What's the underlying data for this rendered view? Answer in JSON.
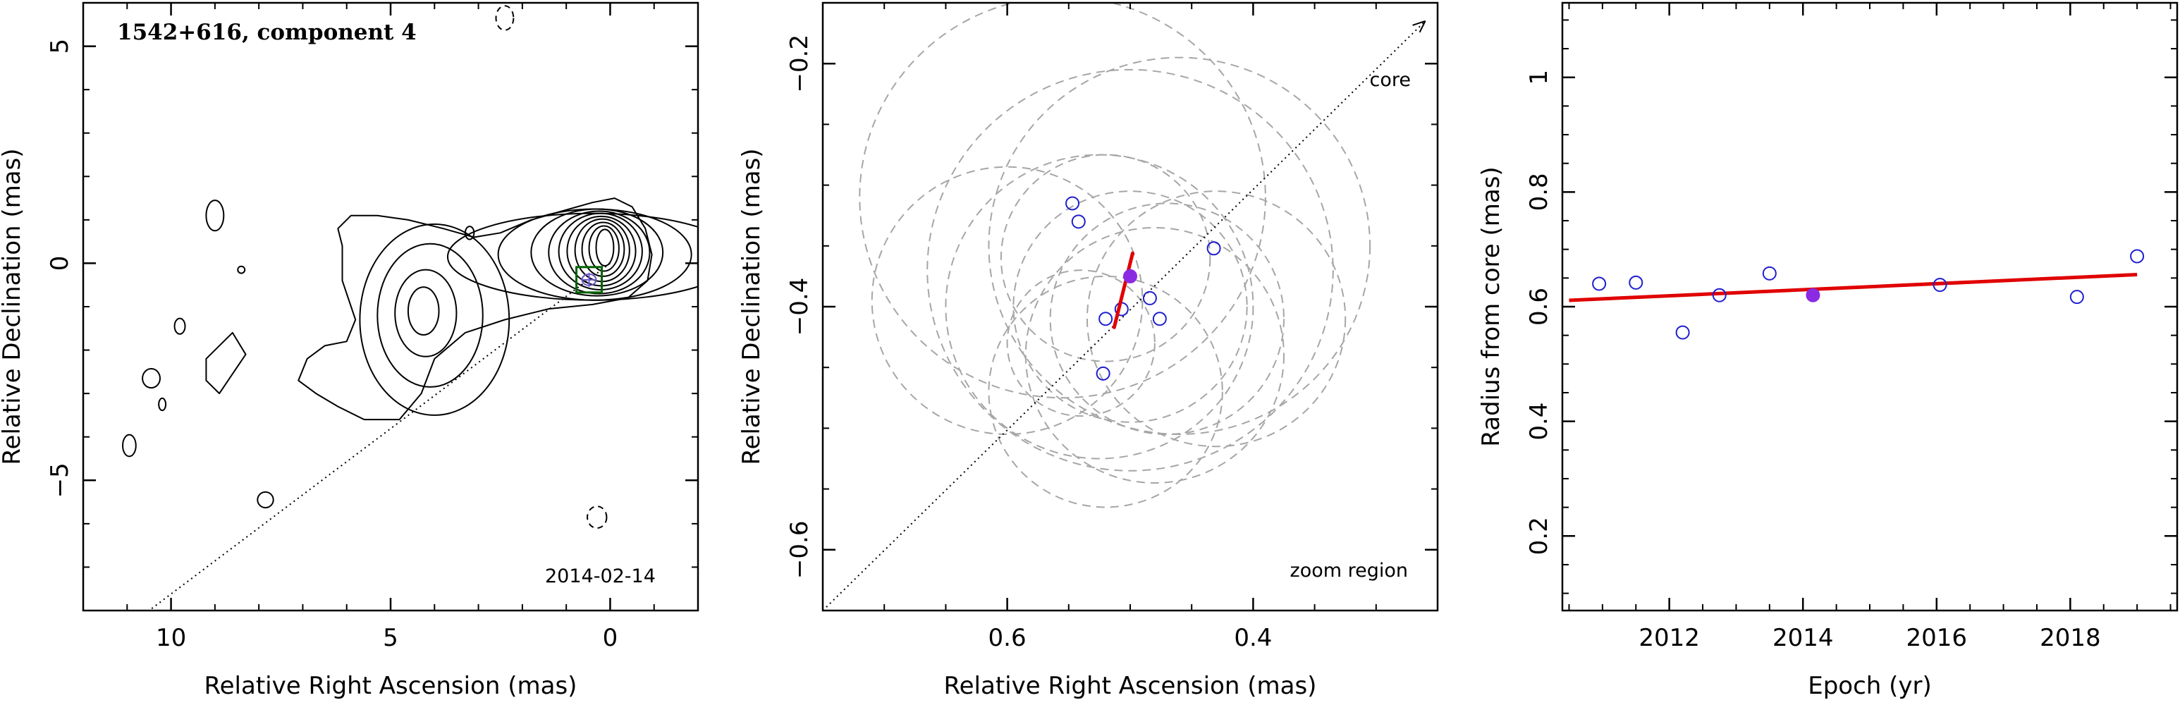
{
  "chart_data": [
    {
      "id": "panel1",
      "type": "contour-map",
      "title": "1542+616, component 4",
      "epoch_label": "2014-02-14",
      "xlabel": "Relative Right Ascension (mas)",
      "ylabel": "Relative Declination (mas)",
      "xlim": [
        12,
        -2
      ],
      "ylim": [
        -8,
        6
      ],
      "x_ticks": [
        10,
        5,
        0
      ],
      "y_ticks": [
        5,
        0,
        -5
      ],
      "core": [
        0,
        0
      ],
      "component": [
        0.48,
        -0.38
      ],
      "jet_direction_line": {
        "from": [
          0,
          0
        ],
        "to": [
          10.5,
          -8
        ]
      },
      "negative_contours": [
        {
          "cx": 2.4,
          "cy": 5.65,
          "rx": 0.2,
          "ry": 0.28
        },
        {
          "cx": 0.3,
          "cy": -5.85,
          "rx": 0.22,
          "ry": 0.25
        }
      ],
      "island_contours": [
        {
          "cx": 10.95,
          "cy": -4.2,
          "rx": 0.15,
          "ry": 0.25
        },
        {
          "cx": 10.45,
          "cy": -2.65,
          "rx": 0.2,
          "ry": 0.22
        },
        {
          "cx": 10.2,
          "cy": -3.25,
          "rx": 0.08,
          "ry": 0.14
        },
        {
          "cx": 9.8,
          "cy": -1.45,
          "rx": 0.12,
          "ry": 0.18
        },
        {
          "cx": 9.0,
          "cy": 1.1,
          "rx": 0.2,
          "ry": 0.35
        },
        {
          "cx": 8.4,
          "cy": -0.15,
          "rx": 0.08,
          "ry": 0.08
        },
        {
          "cx": 7.85,
          "cy": -5.45,
          "rx": 0.18,
          "ry": 0.18
        },
        {
          "cx": 3.2,
          "cy": 0.7,
          "rx": 0.1,
          "ry": 0.15
        }
      ],
      "main_contours": {
        "outer_jet": [
          [
            6,
            -1.8
          ],
          [
            5.8,
            -1.3
          ],
          [
            6.1,
            -0.4
          ],
          [
            6.1,
            0.4
          ],
          [
            6.2,
            0.8
          ],
          [
            5.9,
            1.1
          ],
          [
            5.3,
            1.1
          ],
          [
            4.6,
            1.0
          ],
          [
            3.8,
            0.8
          ],
          [
            3.1,
            0.6
          ],
          [
            2.5,
            0.7
          ],
          [
            1.8,
            1.0
          ],
          [
            1.1,
            1.2
          ],
          [
            0.4,
            1.4
          ],
          [
            -0.1,
            1.5
          ],
          [
            -0.5,
            1.3
          ],
          [
            -0.8,
            0.8
          ],
          [
            -0.95,
            0.2
          ],
          [
            -0.85,
            -0.4
          ],
          [
            -0.4,
            -0.8
          ],
          [
            0.4,
            -0.95
          ],
          [
            1.4,
            -1.05
          ],
          [
            2.4,
            -1.3
          ],
          [
            3.3,
            -1.6
          ],
          [
            4.0,
            -2.2
          ],
          [
            4.3,
            -3.0
          ],
          [
            4.8,
            -3.6
          ],
          [
            5.6,
            -3.6
          ],
          [
            6.2,
            -3.3
          ],
          [
            6.7,
            -3.0
          ],
          [
            7.1,
            -2.7
          ],
          [
            6.9,
            -2.2
          ],
          [
            6.5,
            -1.9
          ]
        ],
        "knot_contours": [
          {
            "cx": 4.0,
            "cy": -1.3,
            "rx": 1.7,
            "ry": 2.2
          },
          {
            "cx": 4.1,
            "cy": -1.2,
            "rx": 1.2,
            "ry": 1.65
          },
          {
            "cx": 4.2,
            "cy": -1.15,
            "rx": 0.7,
            "ry": 1.0
          },
          {
            "cx": 4.25,
            "cy": -1.1,
            "rx": 0.35,
            "ry": 0.55
          }
        ],
        "west_irregular": [
          [
            9.2,
            -2.2
          ],
          [
            8.6,
            -1.6
          ],
          [
            8.3,
            -2.1
          ],
          [
            8.9,
            -3.0
          ],
          [
            9.2,
            -2.7
          ]
        ],
        "core_nested": [
          {
            "cx": 0.4,
            "cy": 0.15,
            "rx": 3.3,
            "ry": 1.0
          },
          {
            "cx": 0.35,
            "cy": 0.2,
            "rx": 2.2,
            "ry": 1.05
          },
          {
            "cx": 0.3,
            "cy": 0.25,
            "rx": 1.5,
            "ry": 1.0
          },
          {
            "cx": 0.25,
            "cy": 0.25,
            "rx": 1.15,
            "ry": 0.95
          },
          {
            "cx": 0.22,
            "cy": 0.27,
            "rx": 0.95,
            "ry": 0.88
          },
          {
            "cx": 0.2,
            "cy": 0.28,
            "rx": 0.78,
            "ry": 0.8
          },
          {
            "cx": 0.18,
            "cy": 0.3,
            "rx": 0.62,
            "ry": 0.72
          },
          {
            "cx": 0.16,
            "cy": 0.32,
            "rx": 0.48,
            "ry": 0.62
          },
          {
            "cx": 0.14,
            "cy": 0.34,
            "rx": 0.34,
            "ry": 0.52
          },
          {
            "cx": 0.12,
            "cy": 0.36,
            "rx": 0.2,
            "ry": 0.42
          }
        ]
      },
      "colors": {
        "contour": "#000000",
        "zoom_box": "#006400",
        "component_marker": "#6a5acd",
        "ellipse": "#6a5acd"
      }
    },
    {
      "id": "panel2",
      "type": "scatter",
      "xlabel": "Relative Right Ascension (mas)",
      "ylabel": "Relative Declination (mas)",
      "annotation_core": "core",
      "annotation_region": "zoom region",
      "xlim": [
        0.75,
        0.25
      ],
      "ylim": [
        -0.65,
        -0.15
      ],
      "x_ticks": [
        0.6,
        0.4
      ],
      "y_ticks": [
        -0.2,
        -0.4,
        -0.6
      ],
      "open_points": [
        [
          0.547,
          -0.315
        ],
        [
          0.542,
          -0.33
        ],
        [
          0.52,
          -0.41
        ],
        [
          0.522,
          -0.455
        ],
        [
          0.507,
          -0.402
        ],
        [
          0.484,
          -0.393
        ],
        [
          0.476,
          -0.41
        ],
        [
          0.432,
          -0.352
        ]
      ],
      "filled_point": [
        0.5,
        -0.375
      ],
      "fit_segment": {
        "from": [
          0.513,
          -0.417
        ],
        "to": [
          0.498,
          -0.356
        ]
      },
      "jet_direction_line": {
        "from": [
          0.75,
          -0.65
        ],
        "to": [
          0.26,
          -0.165
        ]
      },
      "dashed_circles": [
        {
          "cx": 0.555,
          "cy": -0.31,
          "r": 0.165
        },
        {
          "cx": 0.5,
          "cy": -0.37,
          "r": 0.165
        },
        {
          "cx": 0.46,
          "cy": -0.35,
          "r": 0.155
        },
        {
          "cx": 0.6,
          "cy": -0.395,
          "r": 0.11
        },
        {
          "cx": 0.525,
          "cy": -0.4,
          "r": 0.125
        },
        {
          "cx": 0.5,
          "cy": -0.4,
          "r": 0.095
        },
        {
          "cx": 0.47,
          "cy": -0.41,
          "r": 0.095
        },
        {
          "cx": 0.43,
          "cy": -0.41,
          "r": 0.105
        },
        {
          "cx": 0.52,
          "cy": -0.47,
          "r": 0.095
        },
        {
          "cx": 0.54,
          "cy": -0.43,
          "r": 0.06
        },
        {
          "cx": 0.48,
          "cy": -0.44,
          "r": 0.105
        },
        {
          "cx": 0.52,
          "cy": -0.36,
          "r": 0.085
        }
      ],
      "colors": {
        "open_points": "#1f1fd0",
        "filled_point": "#8a2be2",
        "fit": "#e00000",
        "circles": "#a6a6a6"
      }
    },
    {
      "id": "panel3",
      "type": "scatter",
      "xlabel": "Epoch (yr)",
      "ylabel": "Radius from core (mas)",
      "xlim": [
        2010.4,
        2019.6
      ],
      "ylim": [
        0.07,
        1.13
      ],
      "x_ticks": [
        2012,
        2014,
        2016,
        2018
      ],
      "y_ticks": [
        0.2,
        0.4,
        0.6,
        0.8,
        1
      ],
      "open_points": [
        [
          2010.95,
          0.64
        ],
        [
          2011.5,
          0.642
        ],
        [
          2012.2,
          0.555
        ],
        [
          2012.75,
          0.62
        ],
        [
          2013.5,
          0.658
        ],
        [
          2016.05,
          0.638
        ],
        [
          2018.1,
          0.617
        ],
        [
          2019.0,
          0.688
        ]
      ],
      "filled_point": [
        2014.15,
        0.62
      ],
      "fit_line": {
        "from": [
          2010.5,
          0.611
        ],
        "to": [
          2019.0,
          0.656
        ]
      },
      "colors": {
        "open_points": "#1f1fd0",
        "filled_point": "#8a2be2",
        "fit": "#e00000"
      }
    }
  ]
}
